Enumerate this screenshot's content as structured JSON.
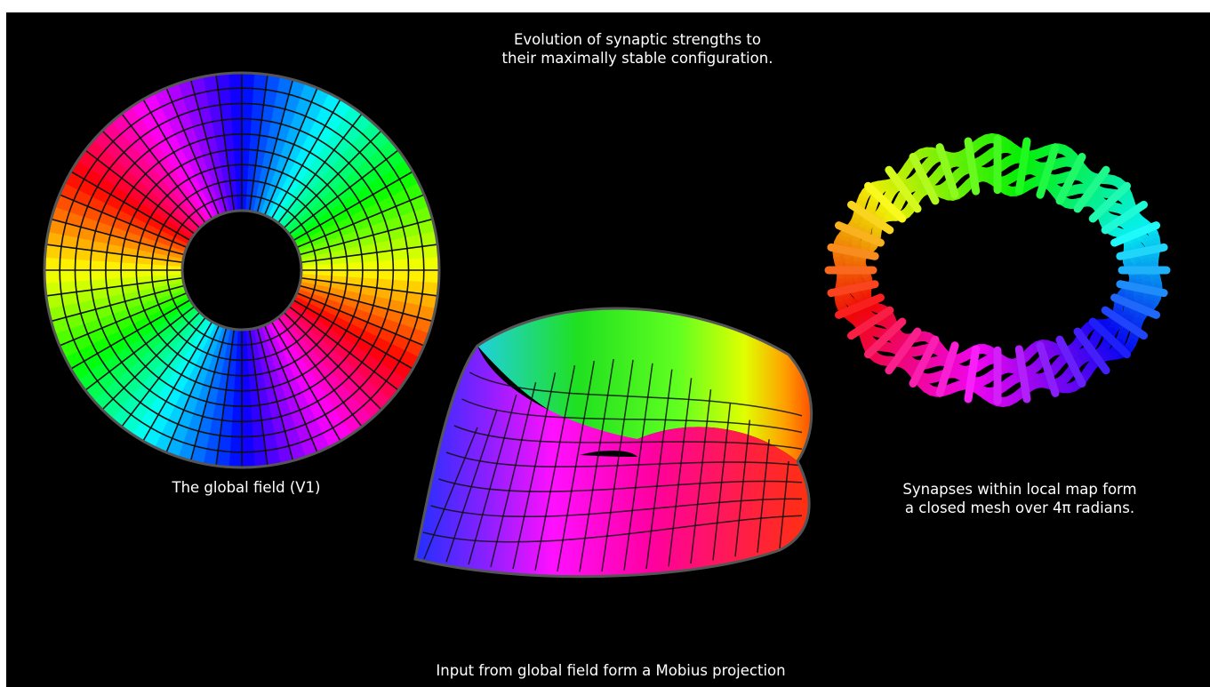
{
  "title": {
    "line1": "Evolution of synaptic strengths to",
    "line2": "their maximally stable configuration."
  },
  "disk": {
    "caption": "The global field (V1)",
    "radial_segments": 48,
    "rings": 9
  },
  "mobius": {
    "caption": "Input from global field form a Mobius projection"
  },
  "torus": {
    "caption_line1": "Synapses within local map form",
    "caption_line2": "a closed mesh over 4π radians."
  },
  "colors": {
    "background": "#000000",
    "caption_text": "#ffffff",
    "grid_line": "#111111",
    "outline": "#555555"
  }
}
